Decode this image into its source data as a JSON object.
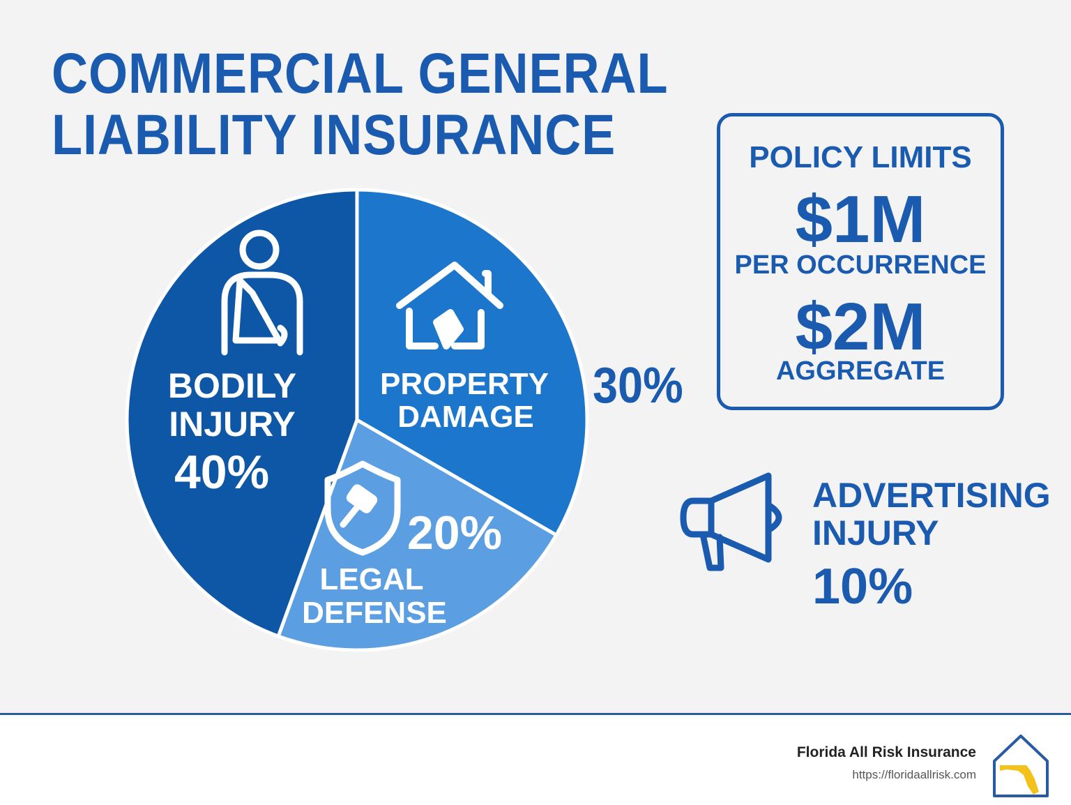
{
  "title_line1": "COMMERCIAL GENERAL",
  "title_line2": "LIABILITY INSURANCE",
  "chart_data": {
    "type": "pie",
    "slices": [
      {
        "label": "BODILY INJURY",
        "value": 40,
        "value_text": "40%",
        "color": "#0e56a6",
        "icon": "injured-person-arm-sling-icon"
      },
      {
        "label": "PROPERTY DAMAGE",
        "value": 30,
        "value_text": "30%",
        "color": "#1b76cc",
        "icon": "damaged-house-icon"
      },
      {
        "label": "LEGAL DEFENSE",
        "value": 20,
        "value_text": "20%",
        "color": "#5c9ee2",
        "icon": "shield-gavel-icon"
      }
    ],
    "outside_item": {
      "label": "ADVERTISING INJURY",
      "value": 10,
      "value_text": "10%",
      "icon": "megaphone-icon"
    },
    "accent_color": "#1a5bb0"
  },
  "policy_limits": {
    "title": "POLICY LIMITS",
    "occurrence_value": "$1M",
    "occurrence_label": "PER OCCURRENCE",
    "aggregate_value": "$2M",
    "aggregate_label": "AGGREGATE"
  },
  "footer": {
    "brand": "Florida All Risk Insurance",
    "url": "https://floridaallrisk.com",
    "logo_icon": "house-florida-logo-icon"
  }
}
